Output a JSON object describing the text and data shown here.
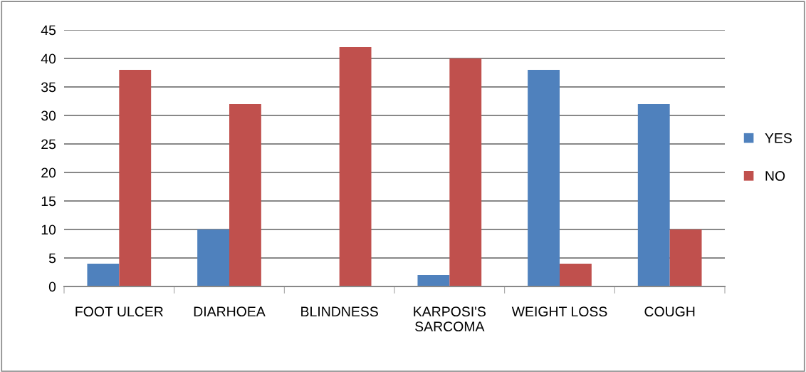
{
  "chart_data": {
    "type": "bar",
    "categories": [
      "FOOT ULCER",
      "DIARHOEA",
      "BLINDNESS",
      "KARPOSI'S\nSARCOMA",
      "WEIGHT LOSS",
      "COUGH"
    ],
    "series": [
      {
        "name": "YES",
        "color": "#4f81bd",
        "values": [
          4,
          10,
          0,
          2,
          38,
          32
        ]
      },
      {
        "name": "NO",
        "color": "#c0504d",
        "values": [
          38,
          32,
          42,
          40,
          4,
          10
        ]
      }
    ],
    "ylim": [
      0,
      45
    ],
    "yticks": [
      0,
      5,
      10,
      15,
      20,
      25,
      30,
      35,
      40,
      45
    ],
    "grid": "y",
    "legend": "right"
  }
}
